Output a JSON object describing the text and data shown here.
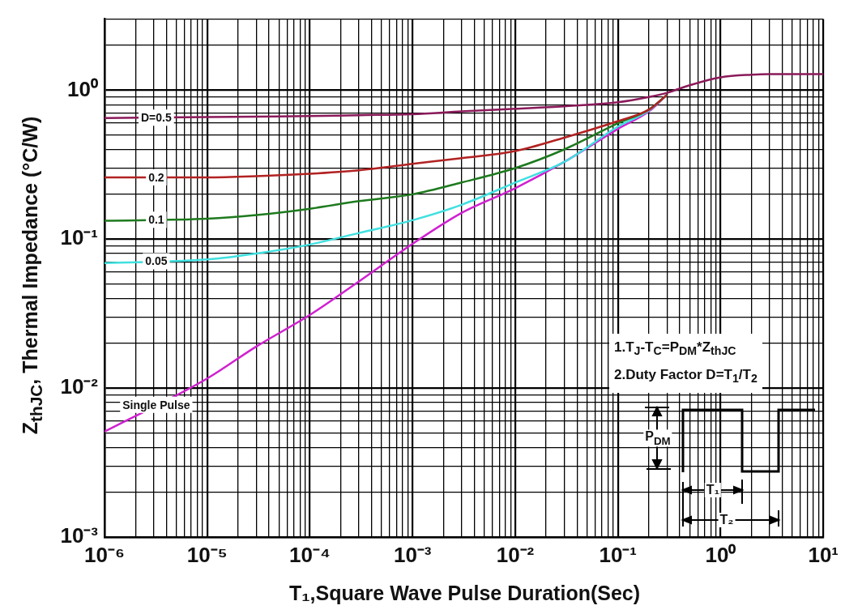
{
  "chart_data": {
    "type": "line",
    "xlabel": "T₁,Square Wave Pulse Duration(Sec)",
    "ylabel": "Z$_{thJC}$, Thermal  Impedance (°C/W)",
    "log": "xy",
    "grid": true,
    "legend": false,
    "x": [
      1e-06,
      1e-05,
      3e-05,
      0.0001,
      0.0003,
      0.001,
      0.003,
      0.01,
      0.03,
      0.1,
      0.2,
      0.3,
      0.5,
      1,
      2,
      3,
      10
    ],
    "series": [
      {
        "name": "D=0.5",
        "color": "#8b1a5a",
        "values": [
          0.65,
          0.66,
          0.665,
          0.67,
          0.68,
          0.69,
          0.72,
          0.75,
          0.78,
          0.83,
          0.9,
          0.96,
          1.08,
          1.22,
          1.27,
          1.28,
          1.28
        ]
      },
      {
        "name": "0.2",
        "color": "#b22222",
        "values": [
          0.26,
          0.26,
          0.265,
          0.275,
          0.29,
          0.32,
          0.35,
          0.39,
          0.48,
          0.62,
          0.74,
          0.93,
          null,
          null,
          null,
          null,
          null
        ]
      },
      {
        "name": "0.1",
        "color": "#1e7a1e",
        "values": [
          0.133,
          0.137,
          0.145,
          0.16,
          0.18,
          0.2,
          0.24,
          0.3,
          0.4,
          0.6,
          0.74,
          0.93,
          null,
          null,
          null,
          null,
          null
        ]
      },
      {
        "name": "0.05",
        "color": "#40e0e0",
        "values": [
          0.069,
          0.073,
          0.08,
          0.092,
          0.11,
          0.134,
          0.17,
          0.24,
          0.33,
          0.57,
          0.73,
          0.93,
          null,
          null,
          null,
          null,
          null
        ]
      },
      {
        "name": "Single Pulse",
        "color": "#d020d0",
        "values": [
          0.0051,
          0.0116,
          0.019,
          0.031,
          0.052,
          0.093,
          0.15,
          0.22,
          0.33,
          0.55,
          0.72,
          0.93,
          null,
          null,
          null,
          null,
          null
        ]
      }
    ],
    "xlim": [
      1e-06,
      10
    ],
    "xticks": [
      {
        "value": 1e-06,
        "label": "10⁻⁶"
      },
      {
        "value": 2e-06,
        "label": null
      },
      {
        "value": 3e-06,
        "label": null
      },
      {
        "value": 4e-06,
        "label": null
      },
      {
        "value": 5e-06,
        "label": null
      },
      {
        "value": 6e-06,
        "label": null
      },
      {
        "value": 7e-06,
        "label": null
      },
      {
        "value": 8e-06,
        "label": null
      },
      {
        "value": 9e-06,
        "label": null
      },
      {
        "value": 1e-05,
        "label": "10⁻⁵"
      },
      {
        "value": 2e-05,
        "label": null
      },
      {
        "value": 3e-05,
        "label": null
      },
      {
        "value": 4e-05,
        "label": null
      },
      {
        "value": 5e-05,
        "label": null
      },
      {
        "value": 6e-05,
        "label": null
      },
      {
        "value": 7e-05,
        "label": null
      },
      {
        "value": 8e-05,
        "label": null
      },
      {
        "value": 9e-05,
        "label": null
      },
      {
        "value": 0.0001,
        "label": "10⁻⁴"
      },
      {
        "value": 0.0002,
        "label": null
      },
      {
        "value": 0.0003,
        "label": null
      },
      {
        "value": 0.0004,
        "label": null
      },
      {
        "value": 0.0005,
        "label": null
      },
      {
        "value": 0.0006,
        "label": null
      },
      {
        "value": 0.0007,
        "label": null
      },
      {
        "value": 0.0008,
        "label": null
      },
      {
        "value": 0.0009,
        "label": null
      },
      {
        "value": 0.001,
        "label": "10⁻³"
      },
      {
        "value": 0.002,
        "label": null
      },
      {
        "value": 0.003,
        "label": null
      },
      {
        "value": 0.004,
        "label": null
      },
      {
        "value": 0.005,
        "label": null
      },
      {
        "value": 0.006,
        "label": null
      },
      {
        "value": 0.007,
        "label": null
      },
      {
        "value": 0.008,
        "label": null
      },
      {
        "value": 0.009,
        "label": null
      },
      {
        "value": 0.01,
        "label": "10⁻²"
      },
      {
        "value": 0.02,
        "label": null
      },
      {
        "value": 0.03,
        "label": null
      },
      {
        "value": 0.04,
        "label": null
      },
      {
        "value": 0.05,
        "label": null
      },
      {
        "value": 0.06,
        "label": null
      },
      {
        "value": 0.07,
        "label": null
      },
      {
        "value": 0.08,
        "label": null
      },
      {
        "value": 0.09,
        "label": null
      },
      {
        "value": 0.1,
        "label": "10⁻¹"
      },
      {
        "value": 0.2,
        "label": null
      },
      {
        "value": 0.3,
        "label": null
      },
      {
        "value": 0.4,
        "label": null
      },
      {
        "value": 0.5,
        "label": null
      },
      {
        "value": 0.6,
        "label": null
      },
      {
        "value": 0.7,
        "label": null
      },
      {
        "value": 0.8,
        "label": null
      },
      {
        "value": 0.9,
        "label": null
      },
      {
        "value": 1,
        "label": "10⁰"
      },
      {
        "value": 2,
        "label": null
      },
      {
        "value": 3,
        "label": null
      },
      {
        "value": 4,
        "label": null
      },
      {
        "value": 5,
        "label": null
      },
      {
        "value": 6,
        "label": null
      },
      {
        "value": 7,
        "label": null
      },
      {
        "value": 8,
        "label": null
      },
      {
        "value": 9,
        "label": null
      },
      {
        "value": 10,
        "label": "10¹"
      }
    ],
    "ylim": [
      0.001,
      3
    ],
    "yticks": [
      {
        "value": 0.001,
        "label": "10⁻³"
      },
      {
        "value": 0.002,
        "label": null
      },
      {
        "value": 0.003,
        "label": null
      },
      {
        "value": 0.004,
        "label": null
      },
      {
        "value": 0.005,
        "label": null
      },
      {
        "value": 0.006,
        "label": null
      },
      {
        "value": 0.007,
        "label": null
      },
      {
        "value": 0.008,
        "label": null
      },
      {
        "value": 0.009,
        "label": null
      },
      {
        "value": 0.01,
        "label": "10⁻²"
      },
      {
        "value": 0.02,
        "label": null
      },
      {
        "value": 0.03,
        "label": null
      },
      {
        "value": 0.04,
        "label": null
      },
      {
        "value": 0.05,
        "label": null
      },
      {
        "value": 0.06,
        "label": null
      },
      {
        "value": 0.07,
        "label": null
      },
      {
        "value": 0.08,
        "label": null
      },
      {
        "value": 0.09,
        "label": null
      },
      {
        "value": 0.1,
        "label": "10⁻¹"
      },
      {
        "value": 0.2,
        "label": null
      },
      {
        "value": 0.3,
        "label": null
      },
      {
        "value": 0.4,
        "label": null
      },
      {
        "value": 0.5,
        "label": null
      },
      {
        "value": 0.6,
        "label": null
      },
      {
        "value": 0.7,
        "label": null
      },
      {
        "value": 0.8,
        "label": null
      },
      {
        "value": 0.9,
        "label": null
      },
      {
        "value": 1,
        "label": "10⁰"
      },
      {
        "value": 2,
        "label": null
      },
      {
        "value": 3,
        "label": null
      }
    ],
    "annotations": [
      "1.T$_{J}$-T$_{C}$=P$_{DM}$*Z$_{thJC}$",
      "2.Duty Factor D=T$_{1}$/T$_{2}$",
      "P$_{DM}$",
      "T₁",
      "T₂"
    ]
  }
}
